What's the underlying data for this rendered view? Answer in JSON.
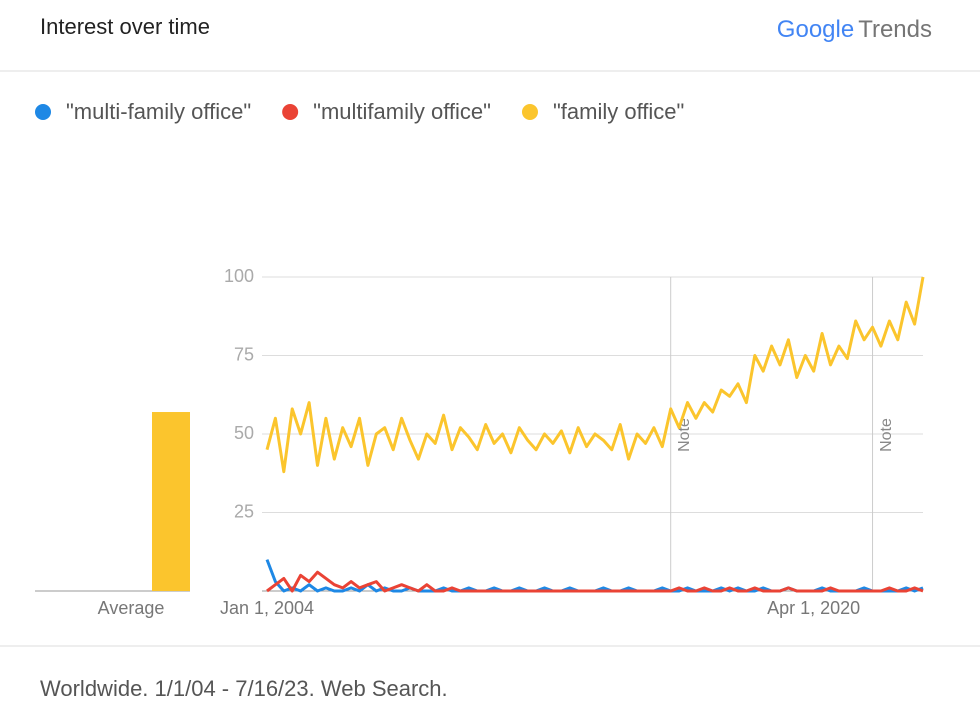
{
  "header": {
    "title": "Interest over time",
    "logo_google": "Google",
    "logo_trends": "Trends"
  },
  "chart_data": {
    "type": "line",
    "categories": [
      "Jan 1, 2004",
      null,
      null,
      null,
      null,
      null,
      null,
      null,
      null,
      null,
      null,
      null,
      null,
      null,
      null,
      null,
      null,
      null,
      null,
      null,
      null,
      null,
      null,
      null,
      null,
      null,
      null,
      null,
      null,
      null,
      null,
      null,
      null,
      null,
      null,
      null,
      null,
      null,
      null,
      null,
      null,
      null,
      null,
      null,
      null,
      null,
      null,
      null,
      null,
      null,
      null,
      null,
      null,
      null,
      null,
      null,
      null,
      null,
      null,
      null,
      null,
      null,
      null,
      null,
      null,
      "Apr 1, 2020",
      null,
      null,
      null,
      null,
      null,
      null,
      null,
      null,
      null,
      null,
      null,
      null,
      null
    ],
    "series": [
      {
        "name": "\"multi-family office\"",
        "color": "#1e88e5",
        "average": 0,
        "values": [
          10,
          3,
          0,
          1,
          0,
          2,
          0,
          1,
          0,
          0,
          1,
          0,
          2,
          0,
          1,
          0,
          0,
          1,
          0,
          0,
          0,
          1,
          0,
          0,
          1,
          0,
          0,
          1,
          0,
          0,
          1,
          0,
          0,
          1,
          0,
          0,
          1,
          0,
          0,
          0,
          1,
          0,
          0,
          1,
          0,
          0,
          0,
          1,
          0,
          0,
          1,
          0,
          0,
          0,
          1,
          0,
          1,
          0,
          0,
          1,
          0,
          0,
          1,
          0,
          0,
          0,
          1,
          0,
          0,
          0,
          0,
          1,
          0,
          0,
          0,
          0,
          1,
          0,
          1
        ]
      },
      {
        "name": "\"multifamily office\"",
        "color": "#ea4335",
        "average": 0,
        "values": [
          0,
          2,
          4,
          0,
          5,
          3,
          6,
          4,
          2,
          1,
          3,
          1,
          2,
          3,
          0,
          1,
          2,
          1,
          0,
          2,
          0,
          0,
          1,
          0,
          0,
          0,
          0,
          0,
          0,
          0,
          0,
          0,
          0,
          0,
          0,
          0,
          0,
          0,
          0,
          0,
          0,
          0,
          0,
          0,
          0,
          0,
          0,
          0,
          0,
          1,
          0,
          0,
          1,
          0,
          0,
          1,
          0,
          0,
          1,
          0,
          0,
          0,
          1,
          0,
          0,
          0,
          0,
          1,
          0,
          0,
          0,
          0,
          0,
          0,
          1,
          0,
          0,
          1,
          0
        ]
      },
      {
        "name": "\"family office\"",
        "color": "#fbc52d",
        "average": 57,
        "values": [
          45,
          55,
          38,
          58,
          50,
          60,
          40,
          55,
          42,
          52,
          46,
          55,
          40,
          50,
          52,
          45,
          55,
          48,
          42,
          50,
          47,
          56,
          45,
          52,
          49,
          45,
          53,
          47,
          50,
          44,
          52,
          48,
          45,
          50,
          47,
          51,
          44,
          52,
          46,
          50,
          48,
          45,
          53,
          42,
          50,
          47,
          52,
          46,
          58,
          52,
          60,
          55,
          60,
          57,
          64,
          62,
          66,
          60,
          75,
          70,
          78,
          72,
          80,
          68,
          75,
          70,
          82,
          72,
          78,
          74,
          86,
          80,
          84,
          78,
          86,
          80,
          92,
          85,
          100
        ]
      }
    ],
    "ylim": [
      0,
      100
    ],
    "yticks": [
      25,
      50,
      75,
      100
    ],
    "grid": true,
    "average_label": "Average",
    "annotations": [
      {
        "index": 48,
        "text": "Note"
      },
      {
        "index": 72,
        "text": "Note"
      }
    ]
  },
  "footer": {
    "text": "Worldwide. 1/1/04 - 7/16/23. Web Search."
  }
}
